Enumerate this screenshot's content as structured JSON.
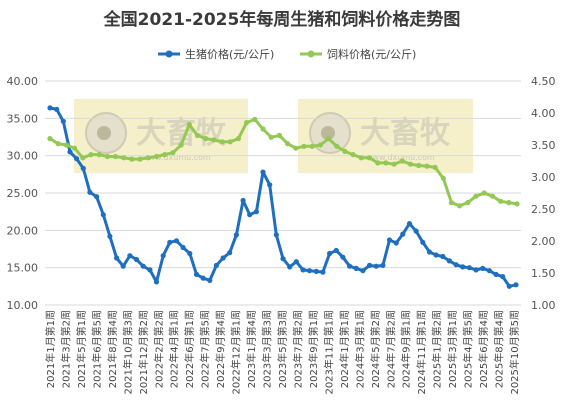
{
  "chart_data": {
    "type": "line",
    "title": "全国2021-2025年每周生猪和饲料价格走势图",
    "grid": true,
    "legend_position": "top",
    "y_left": {
      "ticks": [
        "10.00",
        "15.00",
        "20.00",
        "25.00",
        "30.00",
        "35.00",
        "40.00"
      ],
      "range": [
        10,
        40
      ]
    },
    "y_right": {
      "ticks": [
        "1.00",
        "1.50",
        "2.00",
        "2.50",
        "3.00",
        "3.50",
        "4.00",
        "4.50"
      ],
      "range": [
        1,
        4.5
      ]
    },
    "x_ticks": [
      "2021年1月第1周",
      "2021年3月第2周",
      "2021年5月第1周",
      "2021年6月第5周",
      "2021年8月第4周",
      "2021年10月第3周",
      "2021年12月第2周",
      "2022年2月第2周",
      "2022年4月第1周",
      "2022年6月第1周",
      "2022年7月第5周",
      "2022年9月第4周",
      "2022年12月第1周",
      "2023年1月第4周",
      "2023年3月第3周",
      "2023年5月第3周",
      "2023年7月第2周",
      "2023年9月第1周",
      "2023年11月第1周",
      "2024年1月第1周",
      "2024年3月第1周",
      "2024年5月第2周",
      "2024年7月第2周",
      "2024年9月第1周",
      "2024年11月第1周",
      "2025年1月第2周",
      "2025年3月第1周",
      "2025年4月第5周",
      "2025年6月第4周",
      "2025年8月第4周",
      "2025年10月第5周"
    ],
    "series": [
      {
        "name": "生猪价格(元/公斤)",
        "axis": "left",
        "color": "#1f6fc0",
        "values": [
          36.4,
          36.2,
          34.6,
          30.5,
          29.6,
          28.3,
          25.1,
          24.5,
          22.1,
          19.2,
          16.3,
          15.2,
          16.6,
          16.1,
          15.2,
          14.7,
          13.1,
          16.6,
          18.4,
          18.6,
          17.7,
          16.9,
          14.1,
          13.6,
          13.3,
          15.3,
          16.3,
          17.0,
          19.4,
          24.0,
          22.1,
          22.5,
          27.8,
          26.1,
          19.4,
          16.2,
          15.1,
          15.8,
          14.7,
          14.6,
          14.5,
          14.4,
          16.9,
          17.3,
          16.4,
          15.2,
          14.9,
          14.6,
          15.3,
          15.2,
          15.3,
          18.7,
          18.3,
          19.5,
          20.9,
          19.9,
          18.4,
          17.1,
          16.7,
          16.5,
          15.9,
          15.4,
          15.1,
          15.0,
          14.7,
          14.9,
          14.6,
          14.1,
          13.8,
          12.5,
          12.7
        ]
      },
      {
        "name": "饲料价格(元/公斤)",
        "axis": "right",
        "color": "#92c853",
        "values": [
          3.6,
          3.52,
          3.5,
          3.45,
          3.3,
          3.35,
          3.35,
          3.32,
          3.32,
          3.3,
          3.28,
          3.28,
          3.3,
          3.32,
          3.35,
          3.38,
          3.5,
          3.82,
          3.65,
          3.6,
          3.58,
          3.55,
          3.55,
          3.6,
          3.85,
          3.9,
          3.75,
          3.62,
          3.65,
          3.52,
          3.45,
          3.48,
          3.48,
          3.5,
          3.6,
          3.48,
          3.4,
          3.35,
          3.3,
          3.3,
          3.22,
          3.22,
          3.2,
          3.25,
          3.2,
          3.18,
          3.17,
          3.15,
          2.98,
          2.6,
          2.55,
          2.6,
          2.7,
          2.75,
          2.7,
          2.62,
          2.6,
          2.58
        ]
      }
    ]
  },
  "watermark": {
    "brand_text": "大畜牧",
    "url_text": "www.dxumu.com",
    "color": "#f5f0c9"
  }
}
